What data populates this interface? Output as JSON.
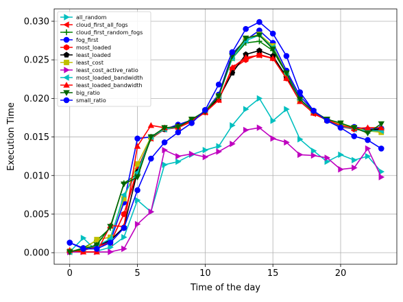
{
  "chart_data": {
    "type": "line",
    "title": "",
    "xlabel": "Time of the day",
    "ylabel": "Execution Time",
    "xlim": [
      -1.15,
      24.15
    ],
    "ylim": [
      -0.0015,
      0.0316
    ],
    "xticks": [
      0,
      5,
      10,
      15,
      20
    ],
    "xtick_labels": [
      "0",
      "5",
      "10",
      "15",
      "20"
    ],
    "yticks": [
      0.0,
      0.005,
      0.01,
      0.015,
      0.02,
      0.025,
      0.03
    ],
    "ytick_labels": [
      "0.000",
      "0.005",
      "0.010",
      "0.015",
      "0.020",
      "0.025",
      "0.030"
    ],
    "grid": true,
    "legend": "upper-left",
    "x": [
      0,
      1,
      2,
      3,
      4,
      5,
      6,
      7,
      8,
      9,
      10,
      11,
      12,
      13,
      14,
      15,
      16,
      17,
      18,
      19,
      20,
      21,
      22,
      23
    ],
    "series": [
      {
        "name": "all_random",
        "color": "#00bfbf",
        "marker": "tri-right",
        "values": [
          0.0001,
          0.0019,
          0.0002,
          0.0007,
          0.002,
          0.0068,
          0.0053,
          0.0114,
          0.0118,
          0.0127,
          0.0133,
          0.0138,
          0.0165,
          0.0186,
          0.02,
          0.0171,
          0.0186,
          0.0147,
          0.0132,
          0.0118,
          0.0127,
          0.012,
          0.0125,
          0.0105
        ]
      },
      {
        "name": "cloud_first_all_fogs",
        "color": "#ff0000",
        "marker": "tri-left",
        "values": [
          0.0001,
          0.0003,
          0.0008,
          0.0013,
          0.005,
          0.0105,
          0.0148,
          0.016,
          0.0162,
          0.017,
          0.0182,
          0.0198,
          0.024,
          0.0252,
          0.0256,
          0.0252,
          0.0228,
          0.0198,
          0.018,
          0.0172,
          0.0163,
          0.016,
          0.0158,
          0.0157
        ]
      },
      {
        "name": "cloud_first_random_fogs",
        "color": "#008000",
        "marker": "plus",
        "values": [
          0.0001,
          0.0006,
          0.0016,
          0.0032,
          0.009,
          0.0102,
          0.0148,
          0.0161,
          0.0163,
          0.0172,
          0.0183,
          0.0203,
          0.0252,
          0.0272,
          0.0274,
          0.0262,
          0.0232,
          0.0198,
          0.0182,
          0.0171,
          0.0166,
          0.0161,
          0.0157,
          0.016
        ]
      },
      {
        "name": "fog_first",
        "color": "#0000ff",
        "marker": "circle",
        "values": [
          0.0013,
          0.0006,
          0.0008,
          0.0015,
          0.0065,
          0.0148,
          0.015,
          0.016,
          0.0166,
          0.0172,
          0.0184,
          0.0205,
          0.0258,
          0.0276,
          0.0288,
          0.0272,
          0.0236,
          0.0203,
          0.0184,
          0.0172,
          0.0165,
          0.0163,
          0.016,
          0.0161
        ]
      },
      {
        "name": "most_loaded",
        "color": "#ff0000",
        "marker": "hexagon",
        "values": [
          0.0001,
          0.0003,
          0.0008,
          0.0013,
          0.005,
          0.0108,
          0.0149,
          0.016,
          0.0162,
          0.017,
          0.0182,
          0.0198,
          0.0238,
          0.025,
          0.0257,
          0.0252,
          0.0226,
          0.0197,
          0.0181,
          0.0172,
          0.0164,
          0.016,
          0.0158,
          0.0157
        ]
      },
      {
        "name": "least_loaded",
        "color": "#000000",
        "marker": "pentagon",
        "values": [
          0.0001,
          0.0004,
          0.0009,
          0.0016,
          0.0033,
          0.0105,
          0.015,
          0.016,
          0.0164,
          0.0171,
          0.0183,
          0.02,
          0.0233,
          0.0257,
          0.0262,
          0.0255,
          0.0228,
          0.0198,
          0.0183,
          0.0172,
          0.0165,
          0.0161,
          0.0159,
          0.016
        ]
      },
      {
        "name": "least_cost",
        "color": "#bfbf00",
        "marker": "square",
        "values": [
          0.0002,
          0.0004,
          0.0017,
          0.002,
          0.007,
          0.0115,
          0.015,
          0.0161,
          0.0163,
          0.0172,
          0.0184,
          0.0203,
          0.0252,
          0.0278,
          0.0283,
          0.0268,
          0.0232,
          0.0198,
          0.0182,
          0.0172,
          0.0166,
          0.0162,
          0.0158,
          0.0156
        ]
      },
      {
        "name": "least_cost_active_ratio",
        "color": "#bf00bf",
        "marker": "tri-right",
        "values": [
          0.0001,
          0.0001,
          0.0001,
          0.0001,
          0.0005,
          0.0037,
          0.0053,
          0.0133,
          0.0125,
          0.0128,
          0.0124,
          0.0131,
          0.0141,
          0.0159,
          0.0162,
          0.0148,
          0.0143,
          0.0127,
          0.0126,
          0.0123,
          0.0108,
          0.011,
          0.0135,
          0.0098
        ]
      },
      {
        "name": "most_loaded_bandwidth",
        "color": "#00bfbf",
        "marker": "tri-left",
        "values": [
          0.0001,
          0.0005,
          0.0009,
          0.0018,
          0.0075,
          0.0104,
          0.015,
          0.016,
          0.0163,
          0.0172,
          0.0183,
          0.0203,
          0.0252,
          0.0275,
          0.0282,
          0.0266,
          0.0232,
          0.0198,
          0.0182,
          0.0172,
          0.0164,
          0.016,
          0.0158,
          0.0158
        ]
      },
      {
        "name": "least_loaded_bandwidth",
        "color": "#ff0000",
        "marker": "tri-up",
        "values": [
          0.0003,
          0.0001,
          0.0001,
          0.0035,
          0.0034,
          0.0138,
          0.0165,
          0.0162,
          0.0163,
          0.0171,
          0.0182,
          0.0198,
          0.024,
          0.0253,
          0.0256,
          0.0252,
          0.0226,
          0.0196,
          0.0181,
          0.0172,
          0.0165,
          0.0161,
          0.0162,
          0.0162
        ]
      },
      {
        "name": "big_ratio",
        "color": "#006400",
        "marker": "tri-down",
        "values": [
          0.0001,
          0.0005,
          0.001,
          0.0034,
          0.0089,
          0.0098,
          0.015,
          0.0162,
          0.0163,
          0.0173,
          0.0183,
          0.0203,
          0.0255,
          0.0278,
          0.0282,
          0.0264,
          0.0233,
          0.0199,
          0.0183,
          0.0173,
          0.0168,
          0.0162,
          0.0155,
          0.0167
        ]
      },
      {
        "name": "small_ratio",
        "color": "#0000ff",
        "marker": "circle",
        "values": [
          0.0013,
          0.0005,
          0.0005,
          0.0013,
          0.0032,
          0.0081,
          0.0122,
          0.0143,
          0.0156,
          0.0168,
          0.0185,
          0.0218,
          0.026,
          0.029,
          0.0299,
          0.0284,
          0.0255,
          0.0208,
          0.0184,
          0.0171,
          0.0162,
          0.0151,
          0.0146,
          0.0135
        ]
      }
    ]
  }
}
